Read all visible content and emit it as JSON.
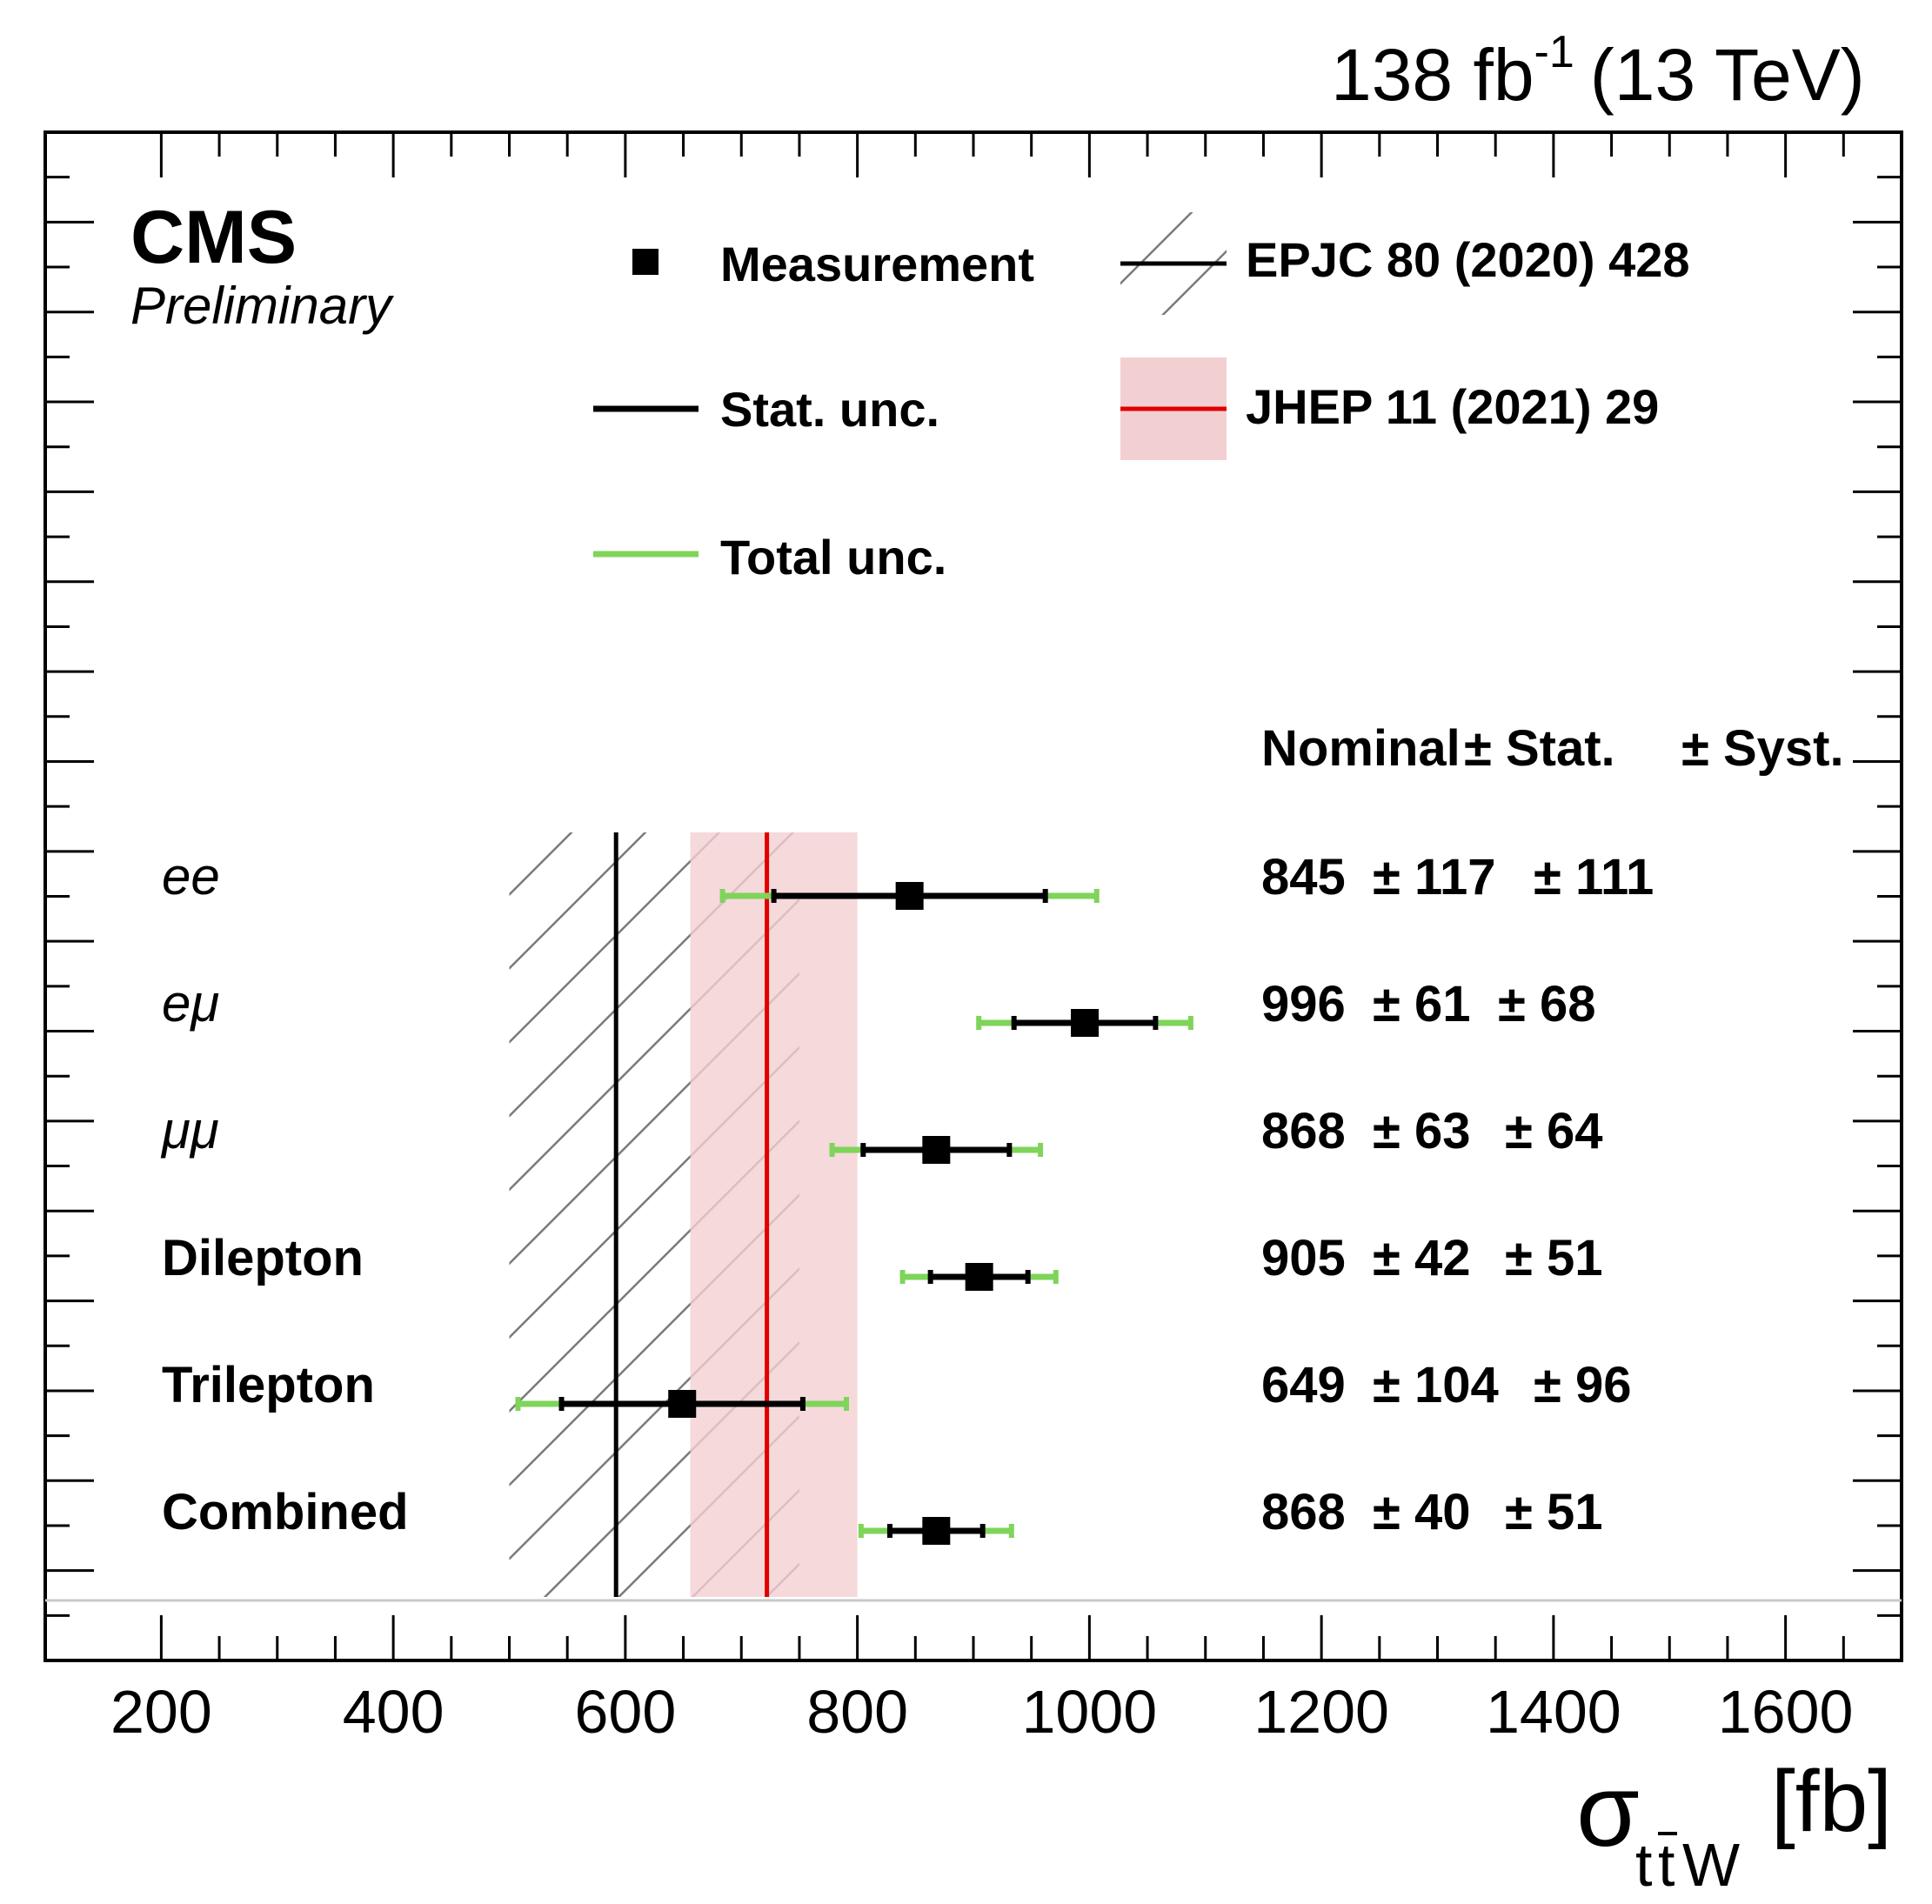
{
  "header": {
    "lumi_value": "138 fb",
    "lumi_exponent": "-1",
    "energy": "(13 TeV)"
  },
  "experiment": {
    "name": "CMS",
    "status": "Preliminary"
  },
  "legend": {
    "measurement": "Measurement",
    "stat": "Stat. unc.",
    "total": "Total unc.",
    "pred1": "EPJC 80 (2020) 428",
    "pred2": "JHEP 11 (2021) 29"
  },
  "colors": {
    "frame": "#000000",
    "stat": "#000000",
    "total": "#7fd45a",
    "pred2_line": "#e00000",
    "pred2_band": "#f2d0d2",
    "hatch": "#7a7a7a"
  },
  "chart_data": {
    "type": "forest",
    "title": "",
    "xlabel": "σ_{tt̄W} [fb]",
    "xlabel_symbol": "σ",
    "xlabel_sub_t1": "t",
    "xlabel_sub_t2": "t",
    "xlabel_sub_w": "W",
    "xlabel_unit": "[fb]",
    "xlim": [
      100,
      1700
    ],
    "xticks": [
      200,
      400,
      600,
      800,
      1000,
      1200,
      1400,
      1600
    ],
    "table_header": {
      "nominal": "Nominal",
      "stat": "± Stat.",
      "syst": "± Syst."
    },
    "measurements": [
      {
        "label": "ee",
        "italic": true,
        "nominal": 845,
        "stat": 117,
        "syst": 111,
        "nominal_text": "845",
        "stat_text": "± 117",
        "syst_text": "± 111"
      },
      {
        "label": "eμ",
        "italic": true,
        "nominal": 996,
        "stat": 61,
        "syst": 68,
        "nominal_text": "996",
        "stat_text": "± 61",
        "syst_text": "± 68"
      },
      {
        "label": "μμ",
        "italic": true,
        "nominal": 868,
        "stat": 63,
        "syst": 64,
        "nominal_text": "868",
        "stat_text": "± 63",
        "syst_text": "± 64"
      },
      {
        "label": "Dilepton",
        "italic": false,
        "nominal": 905,
        "stat": 42,
        "syst": 51,
        "nominal_text": "905",
        "stat_text": "± 42",
        "syst_text": "± 51"
      },
      {
        "label": "Trilepton",
        "italic": false,
        "nominal": 649,
        "stat": 104,
        "syst": 96,
        "nominal_text": "649",
        "stat_text": "± 104",
        "syst_text": "± 96"
      },
      {
        "label": "Combined",
        "italic": false,
        "nominal": 868,
        "stat": 40,
        "syst": 51,
        "nominal_text": "868",
        "stat_text": "± 40",
        "syst_text": "± 51"
      }
    ],
    "predictions": [
      {
        "name": "EPJC 80 (2020) 428",
        "central": 592,
        "low": 500,
        "high": 750,
        "style": "hatched"
      },
      {
        "name": "JHEP 11 (2021) 29",
        "central": 722,
        "low": 656,
        "high": 800,
        "style": "band"
      }
    ]
  }
}
